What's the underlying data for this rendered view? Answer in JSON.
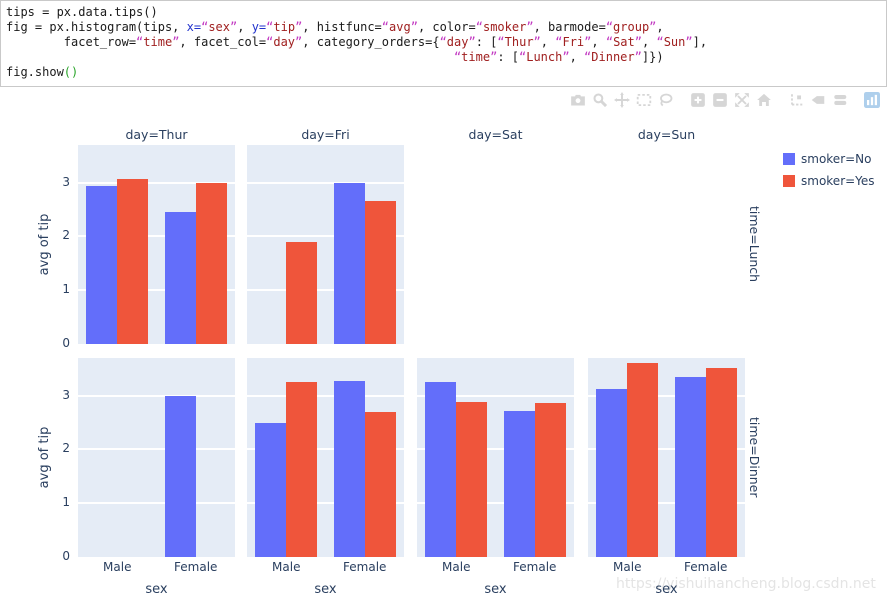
{
  "code": {
    "lines": [
      [
        [
          "p",
          "tips = px.data.tips()"
        ]
      ],
      [
        [
          "p",
          "fig = px.histogram(tips, "
        ],
        [
          "b",
          "x="
        ],
        [
          "s",
          "“sex”"
        ],
        [
          "p",
          ", "
        ],
        [
          "b",
          "y="
        ],
        [
          "s",
          "“tip”"
        ],
        [
          "p",
          ", histfunc="
        ],
        [
          "s",
          "“avg”"
        ],
        [
          "p",
          ", color="
        ],
        [
          "s",
          "“smoker”"
        ],
        [
          "p",
          ", barmode="
        ],
        [
          "s",
          "“group”"
        ],
        [
          "p",
          ","
        ]
      ],
      [
        [
          "p",
          "        facet_row="
        ],
        [
          "s",
          "“time”"
        ],
        [
          "p",
          ", facet_col="
        ],
        [
          "s",
          "“day”"
        ],
        [
          "p",
          ", category_orders={"
        ],
        [
          "s",
          "“day”"
        ],
        [
          "p",
          ": ["
        ],
        [
          "s",
          "“Thur”"
        ],
        [
          "p",
          ", "
        ],
        [
          "s",
          "“Fri”"
        ],
        [
          "p",
          ", "
        ],
        [
          "s",
          "“Sat”"
        ],
        [
          "p",
          ", "
        ],
        [
          "s",
          "“Sun”"
        ],
        [
          "p",
          "],"
        ]
      ],
      [
        [
          "p",
          "                                                              "
        ],
        [
          "s",
          "“time”"
        ],
        [
          "p",
          ": ["
        ],
        [
          "s",
          "“Lunch”"
        ],
        [
          "p",
          ", "
        ],
        [
          "s",
          "“Dinner”"
        ],
        [
          "p",
          "]})"
        ]
      ],
      [
        [
          "p",
          "fig.show"
        ],
        [
          "g",
          "()"
        ]
      ]
    ]
  },
  "toolbar": {
    "icons": [
      "camera-icon",
      "zoom-icon",
      "pan-icon",
      "box-select-icon",
      "lasso-select-icon",
      "zoom-in-icon",
      "zoom-out-icon",
      "autoscale-icon",
      "home-icon",
      "spikelines-icon",
      "hover-closest-icon",
      "hover-compare-icon",
      "plotly-logo"
    ]
  },
  "watermark": "https://yishuihancheng.blog.csdn.net",
  "chart_data": {
    "type": "bar",
    "barmode": "group",
    "title": "",
    "xlabel": "sex",
    "ylabel": "avg of tip",
    "yticks": [
      0,
      1,
      2,
      3
    ],
    "ylim": [
      0,
      3.7
    ],
    "categories": [
      "Male",
      "Female"
    ],
    "facet": {
      "row_var": "time",
      "col_var": "day",
      "rows": [
        "Lunch",
        "Dinner"
      ],
      "cols": [
        "Thur",
        "Fri",
        "Sat",
        "Sun"
      ],
      "row_title_prefix": "time=",
      "col_title_prefix": "day="
    },
    "series": [
      {
        "name": "smoker=No",
        "color": "#636EFA"
      },
      {
        "name": "smoker=Yes",
        "color": "#EF553B"
      }
    ],
    "cells": [
      {
        "row": "Lunch",
        "col": "Thur",
        "empty": false,
        "values": {
          "smoker=No": [
            2.94,
            2.45
          ],
          "smoker=Yes": [
            3.07,
            2.99
          ]
        }
      },
      {
        "row": "Lunch",
        "col": "Fri",
        "empty": false,
        "values": {
          "smoker=No": [
            null,
            3.0
          ],
          "smoker=Yes": [
            1.9,
            2.66
          ]
        }
      },
      {
        "row": "Lunch",
        "col": "Sat",
        "empty": true,
        "values": {
          "smoker=No": [
            null,
            null
          ],
          "smoker=Yes": [
            null,
            null
          ]
        }
      },
      {
        "row": "Lunch",
        "col": "Sun",
        "empty": true,
        "values": {
          "smoker=No": [
            null,
            null
          ],
          "smoker=Yes": [
            null,
            null
          ]
        }
      },
      {
        "row": "Dinner",
        "col": "Thur",
        "empty": false,
        "values": {
          "smoker=No": [
            null,
            3.0
          ],
          "smoker=Yes": [
            null,
            null
          ]
        }
      },
      {
        "row": "Dinner",
        "col": "Fri",
        "empty": false,
        "values": {
          "smoker=No": [
            2.5,
            3.27
          ],
          "smoker=Yes": [
            3.25,
            2.7
          ]
        }
      },
      {
        "row": "Dinner",
        "col": "Sat",
        "empty": false,
        "values": {
          "smoker=No": [
            3.26,
            2.72
          ],
          "smoker=Yes": [
            2.88,
            2.87
          ]
        }
      },
      {
        "row": "Dinner",
        "col": "Sun",
        "empty": false,
        "values": {
          "smoker=No": [
            3.13,
            3.35
          ],
          "smoker=Yes": [
            3.6,
            3.52
          ]
        }
      }
    ],
    "legend": {
      "entries": [
        "smoker=No",
        "smoker=Yes"
      ],
      "position": "top-right"
    },
    "plot_bgcolor": "#E5ECF6",
    "gridcolor": "#ffffff",
    "font_color": "#2a3f5f"
  }
}
